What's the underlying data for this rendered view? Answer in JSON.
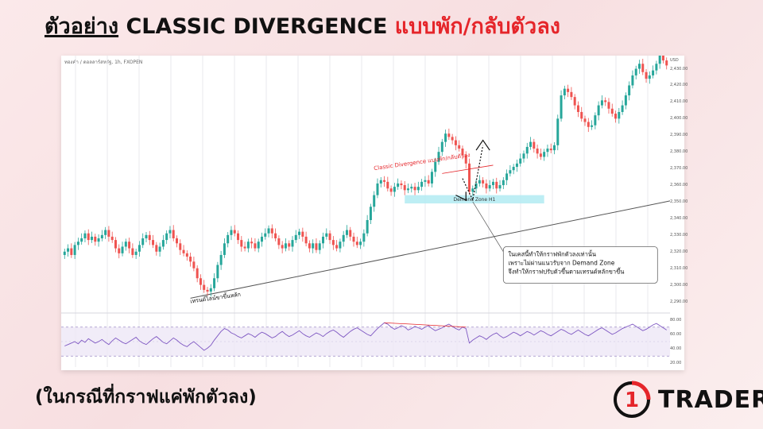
{
  "header": {
    "title_part1": "ตัวอย่าง",
    "title_part2": "CLASSIC DIVERGENCE",
    "title_part3": "แบบพัก/กลับตัวลง"
  },
  "subtitle": "(ในกรณีที่กราฟแค่พักตัวลง)",
  "logo": {
    "number": "1",
    "text": "TRADER",
    "accent": "#e5252a"
  },
  "chart_data": {
    "type": "candlestick",
    "symbol": "ทองคำ / ดอลลาร์สหรัฐ, 1h, FXOPEN",
    "currency": "USD",
    "y_ticks": [
      2430,
      2420,
      2410,
      2400,
      2390,
      2380,
      2370,
      2360,
      2350,
      2340,
      2330,
      2320,
      2310,
      2300,
      2290
    ],
    "ylim": [
      2285,
      2436
    ],
    "close_series": [
      2320,
      2322,
      2318,
      2324,
      2326,
      2328,
      2331,
      2327,
      2329,
      2326,
      2328,
      2330,
      2333,
      2329,
      2327,
      2322,
      2319,
      2323,
      2326,
      2322,
      2318,
      2320,
      2324,
      2328,
      2330,
      2327,
      2324,
      2320,
      2323,
      2327,
      2331,
      2333,
      2328,
      2325,
      2321,
      2319,
      2317,
      2314,
      2310,
      2304,
      2300,
      2297,
      2296,
      2298,
      2304,
      2312,
      2318,
      2325,
      2330,
      2333,
      2331,
      2327,
      2323,
      2322,
      2326,
      2325,
      2322,
      2326,
      2329,
      2331,
      2334,
      2331,
      2328,
      2324,
      2322,
      2325,
      2323,
      2327,
      2330,
      2332,
      2329,
      2325,
      2322,
      2325,
      2321,
      2325,
      2329,
      2331,
      2327,
      2324,
      2322,
      2326,
      2330,
      2333,
      2329,
      2326,
      2324,
      2326,
      2331,
      2339,
      2347,
      2354,
      2361,
      2363,
      2362,
      2358,
      2356,
      2359,
      2361,
      2360,
      2357,
      2358,
      2359,
      2357,
      2359,
      2362,
      2363,
      2361,
      2368,
      2374,
      2380,
      2386,
      2391,
      2389,
      2387,
      2384,
      2382,
      2378,
      2373,
      2356,
      2358,
      2361,
      2363,
      2361,
      2358,
      2360,
      2362,
      2358,
      2360,
      2363,
      2367,
      2369,
      2371,
      2373,
      2376,
      2379,
      2383,
      2386,
      2382,
      2379,
      2377,
      2380,
      2382,
      2381,
      2384,
      2400,
      2414,
      2418,
      2416,
      2413,
      2408,
      2404,
      2400,
      2398,
      2395,
      2396,
      2402,
      2408,
      2411,
      2410,
      2406,
      2403,
      2400,
      2404,
      2408,
      2414,
      2420,
      2426,
      2430,
      2433,
      2428,
      2424,
      2426,
      2429,
      2433,
      2438,
      2435,
      2432
    ],
    "rsi_levels": {
      "upper": 70,
      "lower": 30,
      "ticks": [
        80,
        60,
        40,
        20
      ]
    },
    "rsi_series": [
      44,
      46,
      48,
      50,
      47,
      52,
      49,
      54,
      51,
      48,
      50,
      53,
      49,
      46,
      51,
      55,
      52,
      49,
      47,
      50,
      53,
      56,
      51,
      48,
      46,
      50,
      54,
      57,
      53,
      49,
      47,
      51,
      55,
      52,
      48,
      45,
      43,
      47,
      50,
      46,
      42,
      38,
      41,
      45,
      52,
      58,
      64,
      68,
      66,
      62,
      60,
      57,
      55,
      58,
      61,
      59,
      56,
      60,
      63,
      61,
      58,
      55,
      57,
      61,
      64,
      60,
      57,
      59,
      62,
      65,
      61,
      58,
      56,
      59,
      62,
      60,
      57,
      61,
      64,
      66,
      63,
      59,
      56,
      60,
      64,
      67,
      69,
      66,
      63,
      60,
      58,
      63,
      68,
      72,
      76,
      74,
      70,
      67,
      69,
      72,
      70,
      66,
      68,
      71,
      69,
      67,
      70,
      72,
      68,
      65,
      67,
      69,
      72,
      74,
      71,
      68,
      66,
      70,
      68,
      48,
      52,
      55,
      58,
      56,
      53,
      57,
      60,
      62,
      58,
      55,
      57,
      60,
      63,
      61,
      58,
      61,
      64,
      62,
      59,
      62,
      65,
      63,
      60,
      58,
      61,
      64,
      67,
      65,
      62,
      60,
      63,
      66,
      63,
      60,
      58,
      61,
      64,
      67,
      69,
      66,
      63,
      60,
      62,
      65,
      68,
      70,
      72,
      74,
      71,
      68,
      65,
      67,
      70,
      73,
      75,
      72,
      69,
      66
    ],
    "demand_zone": {
      "label": "Demand Zone H1",
      "from": 2349,
      "to": 2354
    },
    "trend_label": "เทรนด์ไลน์ขาขึ้นหลัก",
    "divergence_label": "Classic Divergence แบบพัก/กลับตัวลง",
    "note_lines": [
      "ในเคสนี้ทำให้กราฟพักตัวลงเท่านั้น",
      "เพราะไม่ผ่านแนวรับจาก Demand Zone",
      "จึงทำให้กราฟปรับตัวขึ้นตามเทรนด์หลักขาขึ้น"
    ],
    "colors": {
      "up": "#26a69a",
      "down": "#ef5350",
      "rsi": "#7e57c2",
      "trendline": "#555555",
      "zone": "#b2ebf2",
      "divergence": "#e5252a"
    }
  }
}
